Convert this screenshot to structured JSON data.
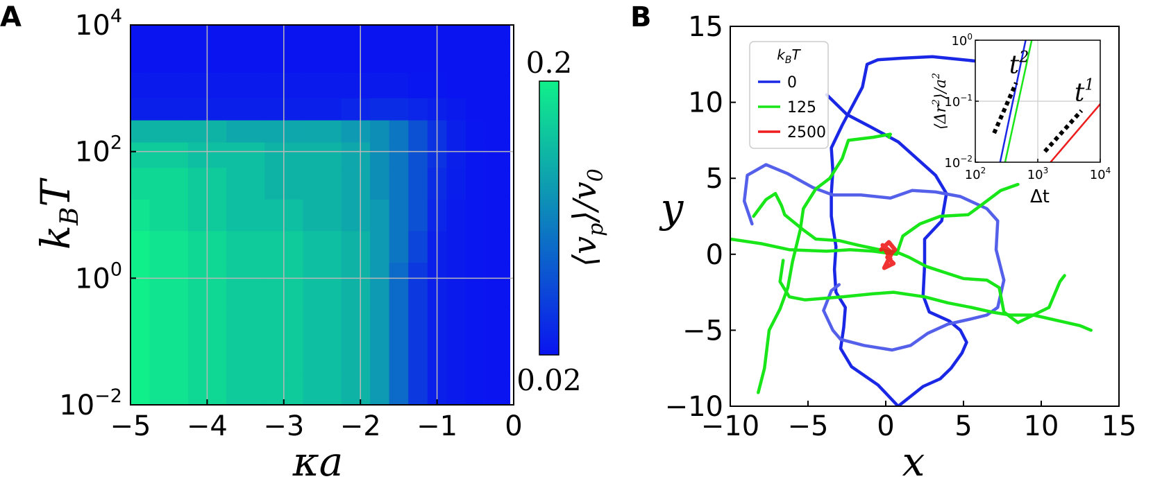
{
  "chart_data": [
    {
      "panel_label": "A",
      "type": "heatmap",
      "xlabel": "κa",
      "ylabel_base": "k",
      "ylabel_sub": "B",
      "ylabel_tail": "T",
      "xlim": [
        -5,
        0
      ],
      "ylim_log10": [
        -2,
        4
      ],
      "grid": true,
      "x_ticks": [
        {
          "value": -5,
          "label": "−5"
        },
        {
          "value": -4,
          "label": "−4"
        },
        {
          "value": -3,
          "label": "−3"
        },
        {
          "value": -2,
          "label": "−2"
        },
        {
          "value": -1,
          "label": "−1"
        },
        {
          "value": 0,
          "label": "0"
        }
      ],
      "y_ticks": [
        {
          "value_log10": -2,
          "base": "10",
          "exp": "−2"
        },
        {
          "value_log10": 0,
          "base": "10",
          "exp": "0"
        },
        {
          "value_log10": 2,
          "base": "10",
          "exp": "2"
        },
        {
          "value_log10": 4,
          "base": "10",
          "exp": "4"
        }
      ],
      "colorbar": {
        "label": "⟨v_p⟩/v_0",
        "label_main": "⟨v",
        "label_sub": "p",
        "label_tail": "⟩/v",
        "label_sub2": "0",
        "min_label": "0.02",
        "max_label": "0.2",
        "min": 0.02,
        "max": 0.2,
        "colors": [
          "#0a14f0",
          "#10f08a"
        ]
      },
      "kappa_a": [
        -5.0,
        -4.5,
        -4.0,
        -3.5,
        -3.0,
        -2.5,
        -2.0,
        -1.75,
        -1.5,
        -1.25,
        -1.0,
        -0.75,
        -0.5,
        -0.25,
        -0.1
      ],
      "log10_kBT": [
        -2.0,
        -1.0,
        0.0,
        0.5,
        1.0,
        1.5,
        2.0,
        2.3,
        2.7,
        3.0,
        3.5,
        4.0
      ],
      "values_v_over_v0": [
        [
          0.2,
          0.19,
          0.18,
          0.17,
          0.17,
          0.16,
          0.15,
          0.13,
          0.09,
          0.05,
          0.03,
          0.025,
          0.022,
          0.02,
          0.02
        ],
        [
          0.2,
          0.19,
          0.18,
          0.17,
          0.17,
          0.16,
          0.15,
          0.13,
          0.09,
          0.05,
          0.03,
          0.025,
          0.022,
          0.02,
          0.02
        ],
        [
          0.2,
          0.19,
          0.18,
          0.17,
          0.17,
          0.16,
          0.15,
          0.13,
          0.09,
          0.05,
          0.03,
          0.025,
          0.022,
          0.02,
          0.02
        ],
        [
          0.2,
          0.19,
          0.18,
          0.17,
          0.17,
          0.16,
          0.15,
          0.13,
          0.1,
          0.06,
          0.03,
          0.025,
          0.022,
          0.02,
          0.02
        ],
        [
          0.19,
          0.18,
          0.17,
          0.16,
          0.16,
          0.15,
          0.14,
          0.13,
          0.1,
          0.07,
          0.035,
          0.025,
          0.022,
          0.02,
          0.02
        ],
        [
          0.18,
          0.18,
          0.17,
          0.16,
          0.15,
          0.15,
          0.14,
          0.12,
          0.1,
          0.07,
          0.04,
          0.028,
          0.022,
          0.02,
          0.02
        ],
        [
          0.17,
          0.17,
          0.16,
          0.16,
          0.15,
          0.15,
          0.14,
          0.12,
          0.1,
          0.07,
          0.045,
          0.03,
          0.022,
          0.02,
          0.02
        ],
        [
          0.15,
          0.15,
          0.15,
          0.14,
          0.14,
          0.14,
          0.13,
          0.12,
          0.1,
          0.07,
          0.045,
          0.03,
          0.022,
          0.02,
          0.02
        ],
        [
          0.03,
          0.03,
          0.03,
          0.03,
          0.03,
          0.03,
          0.035,
          0.04,
          0.04,
          0.035,
          0.03,
          0.025,
          0.02,
          0.02,
          0.02
        ],
        [
          0.025,
          0.025,
          0.025,
          0.025,
          0.025,
          0.025,
          0.025,
          0.025,
          0.025,
          0.022,
          0.022,
          0.02,
          0.02,
          0.02,
          0.02
        ],
        [
          0.02,
          0.02,
          0.02,
          0.02,
          0.02,
          0.02,
          0.02,
          0.02,
          0.02,
          0.02,
          0.02,
          0.02,
          0.02,
          0.02,
          0.02
        ],
        [
          0.02,
          0.02,
          0.02,
          0.02,
          0.02,
          0.02,
          0.02,
          0.02,
          0.02,
          0.02,
          0.02,
          0.02,
          0.02,
          0.02,
          0.02
        ]
      ]
    },
    {
      "panel_label": "B",
      "type": "line",
      "xlabel": "x",
      "ylabel": "y",
      "xlim": [
        -10,
        15
      ],
      "ylim": [
        -10,
        15
      ],
      "x_ticks": [
        {
          "value": -10,
          "label": "−10"
        },
        {
          "value": -5,
          "label": "−5"
        },
        {
          "value": 0,
          "label": "0"
        },
        {
          "value": 5,
          "label": "5"
        },
        {
          "value": 10,
          "label": "10"
        },
        {
          "value": 15,
          "label": "15"
        }
      ],
      "y_ticks": [
        {
          "value": -10,
          "label": "−10"
        },
        {
          "value": -5,
          "label": "−5"
        },
        {
          "value": 0,
          "label": "0"
        },
        {
          "value": 5,
          "label": "5"
        },
        {
          "value": 10,
          "label": "10"
        },
        {
          "value": 15,
          "label": "15"
        }
      ],
      "legend": {
        "title_base": "k",
        "title_sub": "B",
        "title_tail": "T",
        "position": "top-left",
        "entries": [
          {
            "label": "0",
            "color": "#1a28e6"
          },
          {
            "label": "125",
            "color": "#19e619"
          },
          {
            "label": "2500",
            "color": "#ee1c1c"
          }
        ]
      },
      "series": [
        {
          "name": "kBT=0 a",
          "legend": "0",
          "color": "#1a28e6",
          "points": [
            [
              0.8,
              -10
            ],
            [
              -0.5,
              -8.6
            ],
            [
              -2.2,
              -7.4
            ],
            [
              -2.9,
              -6.2
            ],
            [
              -2.7,
              -4.8
            ],
            [
              -2.6,
              -3.5
            ],
            [
              -3.2,
              -2.5
            ],
            [
              -3.3,
              -1
            ],
            [
              -3.2,
              0.5
            ],
            [
              -3.5,
              2.5
            ],
            [
              -3.5,
              4
            ],
            [
              -3.4,
              5.5
            ],
            [
              -3.5,
              7
            ],
            [
              -2.8,
              8.5
            ],
            [
              -1.5,
              11
            ],
            [
              -1.2,
              12.5
            ],
            [
              -0.5,
              12.8
            ],
            [
              1,
              12.9
            ],
            [
              3,
              13
            ],
            [
              5,
              12.8
            ],
            [
              6.8,
              12.6
            ],
            [
              8.3,
              12.2
            ],
            [
              8.8,
              12
            ]
          ]
        },
        {
          "name": "kBT=0 b",
          "legend": "0",
          "color": "#1a28e6",
          "points": [
            [
              -3.8,
              10.5
            ],
            [
              -2.5,
              9.2
            ],
            [
              -1,
              8.4
            ],
            [
              0.8,
              7.4
            ],
            [
              2,
              6.3
            ],
            [
              3.2,
              5.2
            ],
            [
              3.9,
              4
            ],
            [
              3.6,
              2.2
            ],
            [
              2.5,
              1
            ],
            [
              2.5,
              -0.7
            ],
            [
              2.4,
              -2.7
            ],
            [
              2.8,
              -3.8
            ],
            [
              4.1,
              -4.4
            ],
            [
              4.8,
              -5
            ],
            [
              5.2,
              -5.8
            ],
            [
              4.9,
              -6.5
            ],
            [
              4.2,
              -7.5
            ],
            [
              3.5,
              -8.2
            ],
            [
              2.4,
              -8.7
            ],
            [
              0.8,
              -10
            ]
          ]
        },
        {
          "name": "kBT=0 c",
          "legend": "0",
          "color": "#5460ea",
          "points": [
            [
              -8.6,
              2
            ],
            [
              -9.1,
              3.5
            ],
            [
              -8.9,
              5.2
            ],
            [
              -7.7,
              5.9
            ],
            [
              -6.3,
              5.3
            ],
            [
              -4.7,
              4.4
            ],
            [
              -3.4,
              3.9
            ],
            [
              -1.6,
              3.9
            ],
            [
              0.3,
              3.7
            ],
            [
              1.7,
              4.2
            ],
            [
              3.2,
              4.1
            ],
            [
              4.8,
              3.8
            ],
            [
              6.5,
              3
            ],
            [
              7.2,
              2.2
            ],
            [
              7.1,
              0.3
            ],
            [
              7.6,
              -1.7
            ],
            [
              7.2,
              -3.5
            ],
            [
              6.5,
              -4
            ],
            [
              5.3,
              -4.3
            ],
            [
              4,
              -4.6
            ],
            [
              2.7,
              -5.2
            ],
            [
              1.6,
              -6
            ],
            [
              0.4,
              -6.3
            ],
            [
              -1.4,
              -6
            ],
            [
              -2.9,
              -5.6
            ],
            [
              -3.4,
              -5
            ],
            [
              -4,
              -3.7
            ],
            [
              -3.5,
              -2.4
            ],
            [
              -3,
              -2
            ]
          ]
        },
        {
          "name": "kBT=125 a",
          "legend": "125",
          "color": "#19e619",
          "points": [
            [
              -10,
              1
            ],
            [
              -8,
              0.7
            ],
            [
              -6.2,
              0.3
            ],
            [
              -3.8,
              0.2
            ],
            [
              -2.3,
              0.3
            ],
            [
              -0.8,
              0.2
            ],
            [
              0.7,
              0
            ],
            [
              1.1,
              1.2
            ],
            [
              2.2,
              2
            ],
            [
              3.5,
              2.5
            ],
            [
              5.3,
              2.6
            ],
            [
              6.1,
              3.2
            ],
            [
              7.4,
              4.2
            ],
            [
              8.5,
              4.6
            ]
          ]
        },
        {
          "name": "kBT=125 b",
          "legend": "125",
          "color": "#19e619",
          "points": [
            [
              -8.2,
              -9.1
            ],
            [
              -7.8,
              -7.5
            ],
            [
              -7.5,
              -5
            ],
            [
              -6.8,
              -3.6
            ],
            [
              -6.3,
              -2.2
            ],
            [
              -6,
              -0.5
            ],
            [
              -5.5,
              1.6
            ],
            [
              -5.3,
              3
            ],
            [
              -4.5,
              4.3
            ],
            [
              -3.6,
              5
            ],
            [
              -2.8,
              6.3
            ],
            [
              -2.4,
              7.5
            ],
            [
              -0.8,
              7.7
            ],
            [
              0.3,
              7.9
            ],
            [
              0.2,
              7.7
            ]
          ]
        },
        {
          "name": "kBT=125 c",
          "legend": "125",
          "color": "#19e619",
          "points": [
            [
              -6.6,
              -0.4
            ],
            [
              -6.8,
              -1.8
            ],
            [
              -6.2,
              -2.8
            ],
            [
              -5.2,
              -3
            ],
            [
              -2.8,
              -2.8
            ],
            [
              -0.8,
              -2.6
            ],
            [
              0.5,
              -2.5
            ],
            [
              2.5,
              -2.8
            ],
            [
              4,
              -3.2
            ],
            [
              5.5,
              -3.5
            ],
            [
              6.8,
              -3.8
            ],
            [
              8,
              -4
            ],
            [
              9.5,
              -4
            ],
            [
              11.2,
              -4.4
            ],
            [
              12.5,
              -4.7
            ],
            [
              13.2,
              -5
            ]
          ]
        },
        {
          "name": "kBT=125 d",
          "legend": "125",
          "color": "#19e619",
          "points": [
            [
              -8.5,
              2.5
            ],
            [
              -7.7,
              3.6
            ],
            [
              -7.1,
              4
            ],
            [
              -6.7,
              3.2
            ],
            [
              -6.5,
              2.6
            ],
            [
              -5.3,
              1.6
            ],
            [
              -4.5,
              1
            ],
            [
              -3,
              0.9
            ],
            [
              -1.8,
              0.6
            ],
            [
              -0.4,
              0.3
            ],
            [
              0.8,
              0.1
            ],
            [
              1.5,
              -0.2
            ],
            [
              2.6,
              -0.8
            ],
            [
              3.8,
              -1.2
            ],
            [
              5,
              -1.6
            ],
            [
              6.5,
              -1.7
            ],
            [
              7.3,
              -2.2
            ],
            [
              7.6,
              -3.8
            ],
            [
              8.5,
              -4.5
            ],
            [
              10.5,
              -3.5
            ],
            [
              11.2,
              -1.8
            ],
            [
              11.5,
              -1.4
            ]
          ]
        },
        {
          "name": "kBT=2500",
          "legend": "2500",
          "color": "#ee1c1c",
          "points": [
            [
              -0.3,
              0.3
            ],
            [
              0.2,
              0.8
            ],
            [
              0.6,
              0.3
            ],
            [
              0.1,
              -0.2
            ],
            [
              0.5,
              -0.6
            ],
            [
              -0.1,
              -0.9
            ],
            [
              0.4,
              0.1
            ],
            [
              -0.2,
              0.6
            ],
            [
              0.3,
              -0.3
            ]
          ]
        }
      ],
      "inset": {
        "type": "line",
        "xlabel": "Δt",
        "ylabel": "⟨Δr²⟩/a²",
        "ylabel_main": "⟨Δr",
        "ylabel_sup": "2",
        "ylabel_tail": "⟩/a",
        "ylabel_sup2": "2",
        "xscale": "log",
        "yscale": "log",
        "xlim": [
          100,
          10000
        ],
        "ylim": [
          0.01,
          1
        ],
        "x_ticks": [
          {
            "value": 100,
            "base": "10",
            "exp": "2"
          },
          {
            "value": 1000,
            "base": "10",
            "exp": "3"
          },
          {
            "value": 10000,
            "base": "10",
            "exp": "4"
          }
        ],
        "y_ticks": [
          {
            "value": 0.01,
            "base": "10",
            "exp": "−2"
          },
          {
            "value": 0.1,
            "base": "10",
            "exp": "−1"
          },
          {
            "value": 1,
            "base": "10",
            "exp": "0"
          }
        ],
        "series": [
          {
            "name": "0",
            "color": "#1a28e6",
            "x": [
              250,
              640
            ],
            "y": [
              0.01,
              1
            ]
          },
          {
            "name": "125",
            "color": "#19e619",
            "x": [
              300,
              800
            ],
            "y": [
              0.01,
              1
            ]
          },
          {
            "name": "2500",
            "color": "#ee1c1c",
            "x": [
              1600,
              10000
            ],
            "y": [
              0.01,
              0.09
            ]
          }
        ],
        "guides": [
          {
            "label_base": "t",
            "label_exp": "2",
            "x": [
              200,
              450
            ],
            "y": [
              0.03,
              0.2
            ]
          },
          {
            "label_base": "t",
            "label_exp": "1",
            "x": [
              1300,
              5000
            ],
            "y": [
              0.015,
              0.07
            ]
          }
        ]
      }
    }
  ]
}
